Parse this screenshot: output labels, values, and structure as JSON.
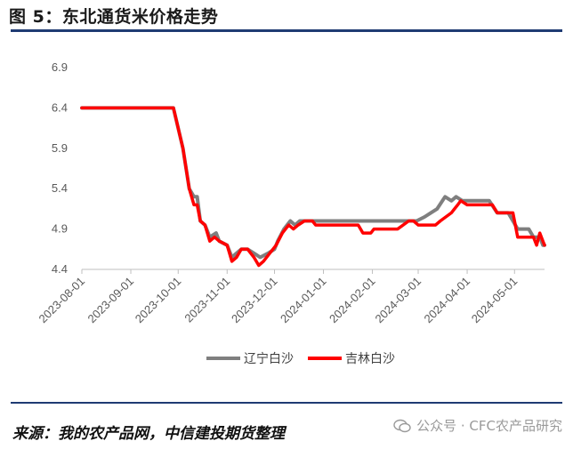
{
  "figure": {
    "title": "图 5：东北通货米价格走势",
    "source": "来源：我的农产品网，中信建投期货整理",
    "watermark": "公众号 · CFC农产品研究"
  },
  "chart_data": {
    "type": "line",
    "title": "",
    "xlabel": "",
    "ylabel": "",
    "ylim": [
      4.4,
      6.9
    ],
    "yticks": [
      "6.9",
      "6.4",
      "5.9",
      "5.4",
      "4.9",
      "4.4"
    ],
    "xlim": [
      "2023-08-01",
      "2024-05-20"
    ],
    "xticks": [
      "2023-08-01",
      "2023-09-01",
      "2023-10-01",
      "2023-11-01",
      "2023-12-01",
      "2024-01-01",
      "2024-02-01",
      "2024-03-01",
      "2024-04-01",
      "2024-05-01"
    ],
    "grid": false,
    "legend": "bottom-center",
    "series": [
      {
        "name": "辽宁白沙",
        "color": "#7f7f7f",
        "points": [
          [
            "2023-08-01",
            6.4
          ],
          [
            "2023-09-28",
            6.4
          ],
          [
            "2023-10-04",
            5.9
          ],
          [
            "2023-10-08",
            5.4
          ],
          [
            "2023-10-11",
            5.3
          ],
          [
            "2023-10-13",
            5.3
          ],
          [
            "2023-10-15",
            5.0
          ],
          [
            "2023-10-18",
            4.95
          ],
          [
            "2023-10-21",
            4.8
          ],
          [
            "2023-10-25",
            4.85
          ],
          [
            "2023-10-27",
            4.75
          ],
          [
            "2023-11-01",
            4.7
          ],
          [
            "2023-11-04",
            4.55
          ],
          [
            "2023-11-07",
            4.6
          ],
          [
            "2023-11-10",
            4.65
          ],
          [
            "2023-11-14",
            4.65
          ],
          [
            "2023-11-18",
            4.6
          ],
          [
            "2023-11-22",
            4.55
          ],
          [
            "2023-11-27",
            4.6
          ],
          [
            "2023-12-01",
            4.65
          ],
          [
            "2023-12-03",
            4.75
          ],
          [
            "2023-12-07",
            4.9
          ],
          [
            "2023-12-11",
            5.0
          ],
          [
            "2023-12-14",
            4.95
          ],
          [
            "2023-12-17",
            5.0
          ],
          [
            "2023-12-21",
            5.0
          ],
          [
            "2024-02-29",
            5.0
          ],
          [
            "2024-03-05",
            5.05
          ],
          [
            "2024-03-09",
            5.1
          ],
          [
            "2024-03-13",
            5.15
          ],
          [
            "2024-03-18",
            5.3
          ],
          [
            "2024-03-22",
            5.25
          ],
          [
            "2024-03-25",
            5.3
          ],
          [
            "2024-03-29",
            5.25
          ],
          [
            "2024-04-15",
            5.25
          ],
          [
            "2024-04-20",
            5.1
          ],
          [
            "2024-04-27",
            5.1
          ],
          [
            "2024-04-30",
            5.0
          ],
          [
            "2024-05-03",
            4.9
          ],
          [
            "2024-05-10",
            4.9
          ],
          [
            "2024-05-13",
            4.8
          ],
          [
            "2024-05-17",
            4.8
          ],
          [
            "2024-05-19",
            4.7
          ],
          [
            "2024-05-20",
            4.7
          ]
        ]
      },
      {
        "name": "吉林白沙",
        "color": "#ff0000",
        "points": [
          [
            "2023-08-01",
            6.4
          ],
          [
            "2023-09-28",
            6.4
          ],
          [
            "2023-10-04",
            5.9
          ],
          [
            "2023-10-08",
            5.4
          ],
          [
            "2023-10-11",
            5.2
          ],
          [
            "2023-10-13",
            5.2
          ],
          [
            "2023-10-15",
            5.0
          ],
          [
            "2023-10-18",
            4.95
          ],
          [
            "2023-10-21",
            4.75
          ],
          [
            "2023-10-24",
            4.8
          ],
          [
            "2023-10-27",
            4.75
          ],
          [
            "2023-11-01",
            4.7
          ],
          [
            "2023-11-04",
            4.5
          ],
          [
            "2023-11-07",
            4.55
          ],
          [
            "2023-11-10",
            4.65
          ],
          [
            "2023-11-14",
            4.65
          ],
          [
            "2023-11-18",
            4.55
          ],
          [
            "2023-11-21",
            4.45
          ],
          [
            "2023-11-24",
            4.5
          ],
          [
            "2023-11-28",
            4.6
          ],
          [
            "2023-12-02",
            4.7
          ],
          [
            "2023-12-06",
            4.85
          ],
          [
            "2023-12-10",
            4.95
          ],
          [
            "2023-12-13",
            4.9
          ],
          [
            "2023-12-16",
            4.95
          ],
          [
            "2023-12-20",
            5.0
          ],
          [
            "2023-12-25",
            5.0
          ],
          [
            "2023-12-27",
            4.95
          ],
          [
            "2024-01-23",
            4.95
          ],
          [
            "2024-01-26",
            4.85
          ],
          [
            "2024-01-31",
            4.85
          ],
          [
            "2024-02-02",
            4.9
          ],
          [
            "2024-02-17",
            4.9
          ],
          [
            "2024-02-24",
            5.0
          ],
          [
            "2024-02-27",
            5.0
          ],
          [
            "2024-03-01",
            4.95
          ],
          [
            "2024-03-12",
            4.95
          ],
          [
            "2024-03-15",
            5.0
          ],
          [
            "2024-03-22",
            5.1
          ],
          [
            "2024-03-26",
            5.2
          ],
          [
            "2024-03-28",
            5.25
          ],
          [
            "2024-04-01",
            5.2
          ],
          [
            "2024-04-17",
            5.2
          ],
          [
            "2024-04-20",
            5.1
          ],
          [
            "2024-04-30",
            5.1
          ],
          [
            "2024-05-03",
            4.8
          ],
          [
            "2024-05-13",
            4.8
          ],
          [
            "2024-05-15",
            4.7
          ],
          [
            "2024-05-17",
            4.85
          ],
          [
            "2024-05-19",
            4.75
          ],
          [
            "2024-05-20",
            4.7
          ]
        ]
      }
    ]
  }
}
